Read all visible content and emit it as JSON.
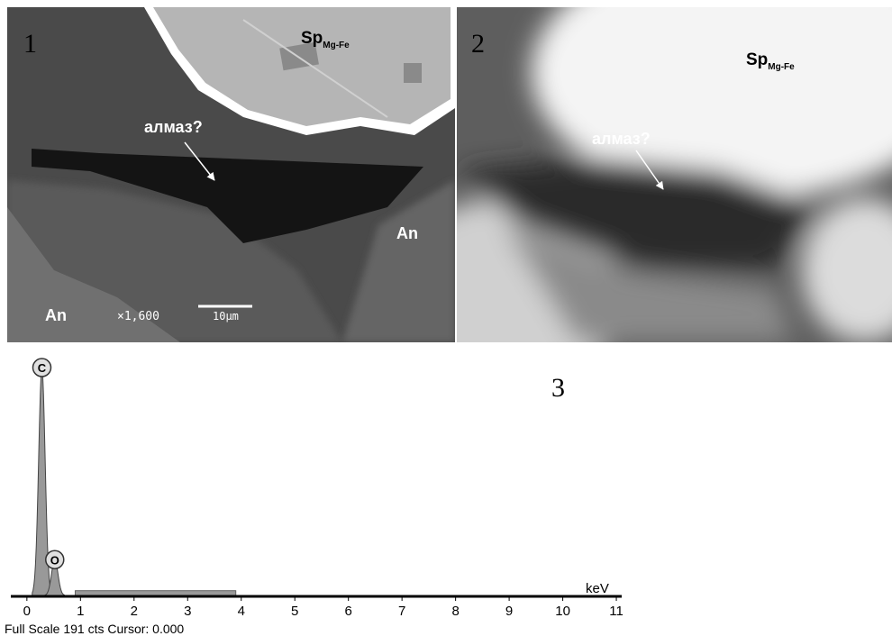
{
  "panels": [
    {
      "number": "1",
      "mineral": "Sp",
      "mineral_subscript": "Mg-Fe",
      "arrow_label": "алмаз?",
      "labels": [
        "An",
        "An"
      ],
      "magnification": "×1,600",
      "scale_bar": "10μm"
    },
    {
      "number": "2",
      "mineral": "Sp",
      "mineral_subscript": "Mg-Fe",
      "arrow_label": "алмаз?"
    }
  ],
  "spectrum": {
    "number": "3",
    "type": "area",
    "x_unit": "keV",
    "xlim": [
      -0.3,
      11.1
    ],
    "xticks": [
      0,
      1,
      2,
      3,
      4,
      5,
      6,
      7,
      8,
      9,
      10,
      11
    ],
    "ylim": [
      0,
      191
    ],
    "peaks": [
      {
        "label": "C",
        "x": 0.28,
        "counts": 191
      },
      {
        "label": "O",
        "x": 0.52,
        "counts": 30
      }
    ],
    "background": {
      "x": [
        0.9,
        3.9
      ],
      "counts": 4
    },
    "color": "#999999",
    "footer": "Full Scale 191 cts Cursor: 0.000"
  }
}
